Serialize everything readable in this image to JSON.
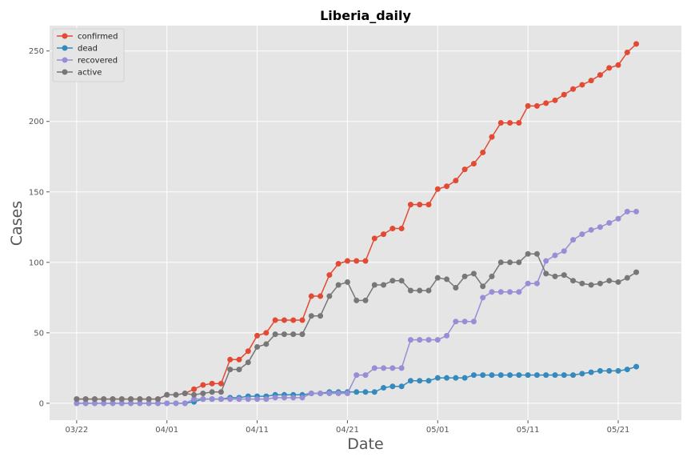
{
  "chart_data": {
    "type": "line",
    "title": "Liberia_daily",
    "xlabel": "Date",
    "ylabel": "Cases",
    "grid": true,
    "legend_position": "top-left",
    "x_start_date": "2020-03-22",
    "x_step_days": 1,
    "xlim": [
      "2020-03-19",
      "2020-05-28"
    ],
    "ylim": [
      -12,
      268
    ],
    "xticks": [
      {
        "label": "03/22",
        "date": "2020-03-22"
      },
      {
        "label": "04/01",
        "date": "2020-04-01"
      },
      {
        "label": "04/11",
        "date": "2020-04-11"
      },
      {
        "label": "04/21",
        "date": "2020-04-21"
      },
      {
        "label": "05/01",
        "date": "2020-05-01"
      },
      {
        "label": "05/11",
        "date": "2020-05-11"
      },
      {
        "label": "05/21",
        "date": "2020-05-21"
      }
    ],
    "yticks": [
      0,
      50,
      100,
      150,
      200,
      250
    ],
    "colors": {
      "plot_background": "#e5e5e5",
      "grid": "#ffffff"
    },
    "series": [
      {
        "name": "confirmed",
        "color": "#e24a33",
        "values": [
          3,
          3,
          3,
          3,
          3,
          3,
          3,
          3,
          3,
          3,
          6,
          6,
          7,
          10,
          13,
          14,
          14,
          31,
          31,
          37,
          48,
          50,
          59,
          59,
          59,
          59,
          76,
          76,
          91,
          99,
          101,
          101,
          101,
          117,
          120,
          124,
          124,
          141,
          141,
          141,
          152,
          154,
          158,
          166,
          170,
          178,
          189,
          199,
          199,
          199,
          211,
          211,
          213,
          215,
          219,
          223,
          226,
          229,
          233,
          238,
          240,
          249,
          255
        ]
      },
      {
        "name": "dead",
        "color": "#348abd",
        "values": [
          0,
          0,
          0,
          0,
          0,
          0,
          0,
          0,
          0,
          0,
          0,
          0,
          0,
          1,
          3,
          3,
          3,
          4,
          4,
          5,
          5,
          5,
          6,
          6,
          6,
          6,
          7,
          7,
          8,
          8,
          8,
          8,
          8,
          8,
          11,
          12,
          12,
          16,
          16,
          16,
          18,
          18,
          18,
          18,
          20,
          20,
          20,
          20,
          20,
          20,
          20,
          20,
          20,
          20,
          20,
          20,
          21,
          22,
          23,
          23,
          23,
          24,
          26
        ]
      },
      {
        "name": "recovered",
        "color": "#988ed5",
        "values": [
          0,
          0,
          0,
          0,
          0,
          0,
          0,
          0,
          0,
          0,
          0,
          0,
          0,
          3,
          3,
          3,
          3,
          3,
          3,
          3,
          3,
          3,
          4,
          4,
          4,
          4,
          7,
          7,
          7,
          7,
          7,
          20,
          20,
          25,
          25,
          25,
          25,
          45,
          45,
          45,
          45,
          48,
          58,
          58,
          58,
          75,
          79,
          79,
          79,
          79,
          85,
          85,
          101,
          105,
          108,
          116,
          120,
          123,
          125,
          128,
          131,
          136,
          136
        ]
      },
      {
        "name": "active",
        "color": "#777777",
        "values": [
          3,
          3,
          3,
          3,
          3,
          3,
          3,
          3,
          3,
          3,
          6,
          6,
          7,
          6,
          7,
          8,
          8,
          24,
          24,
          29,
          40,
          42,
          49,
          49,
          49,
          49,
          62,
          62,
          76,
          84,
          86,
          73,
          73,
          84,
          84,
          87,
          87,
          80,
          80,
          80,
          89,
          88,
          82,
          90,
          92,
          83,
          90,
          100,
          100,
          100,
          106,
          106,
          92,
          90,
          91,
          87,
          85,
          84,
          85,
          87,
          86,
          89,
          93
        ]
      }
    ]
  }
}
